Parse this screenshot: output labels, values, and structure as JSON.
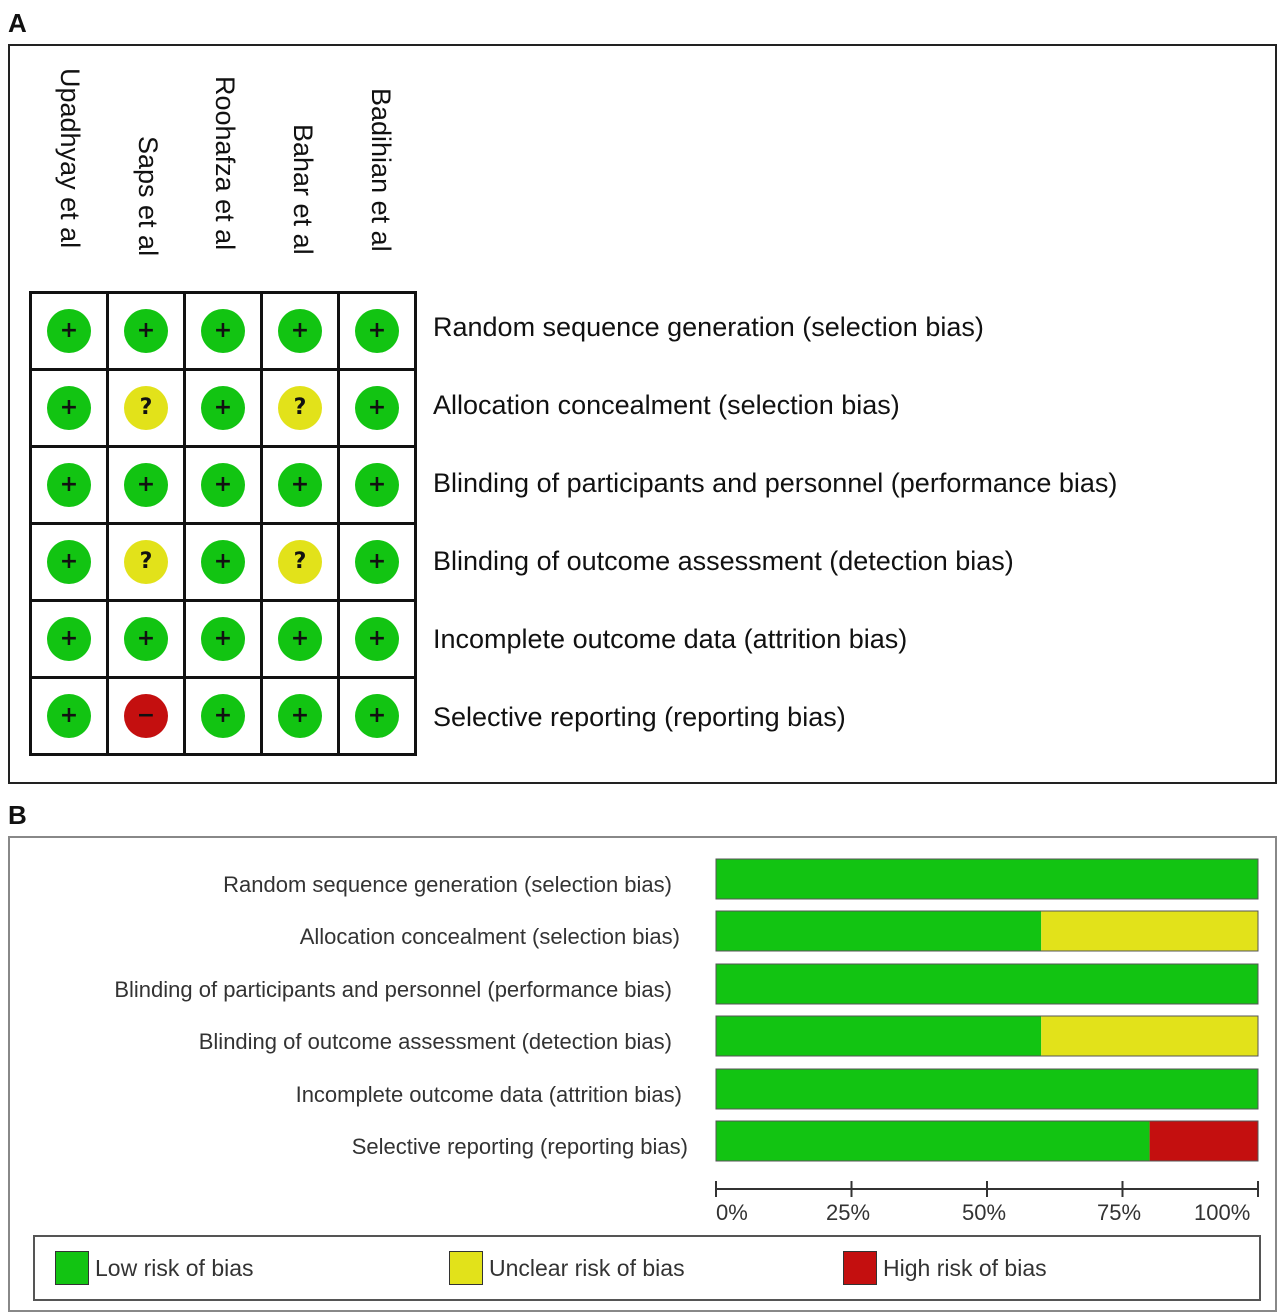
{
  "panel_a": {
    "letter": "A",
    "studies": [
      "Upadhyay et al",
      "Saps et al",
      "Roohafza et al",
      "Bahar et al",
      "Badihian et al"
    ],
    "domains": [
      "Random sequence generation (selection bias)",
      "Allocation concealment (selection bias)",
      "Blinding of participants and personnel (performance bias)",
      "Blinding of outcome assessment (detection bias)",
      "Incomplete outcome data (attrition bias)",
      "Selective reporting (reporting bias)"
    ],
    "symbols": {
      "low": "+",
      "unclear": "?",
      "high": "−"
    },
    "judgements": [
      [
        "low",
        "low",
        "low",
        "low",
        "low"
      ],
      [
        "low",
        "unclear",
        "low",
        "unclear",
        "low"
      ],
      [
        "low",
        "low",
        "low",
        "low",
        "low"
      ],
      [
        "low",
        "unclear",
        "low",
        "unclear",
        "low"
      ],
      [
        "low",
        "low",
        "low",
        "low",
        "low"
      ],
      [
        "low",
        "high",
        "low",
        "low",
        "low"
      ]
    ]
  },
  "panel_b": {
    "letter": "B",
    "legend": {
      "low": "Low risk of bias",
      "unclear": "Unclear risk of bias",
      "high": "High risk of bias"
    }
  },
  "colors": {
    "low": "#12c412",
    "unclear": "#e2e21a",
    "high": "#c40f0f"
  },
  "chart_data": {
    "type": "bar",
    "orientation": "horizontal",
    "stacked": true,
    "categories": [
      "Random sequence generation (selection bias)",
      "Allocation concealment (selection bias)",
      "Blinding of participants and personnel (performance bias)",
      "Blinding of outcome assessment (detection bias)",
      "Incomplete outcome data (attrition bias)",
      "Selective reporting (reporting bias)"
    ],
    "series": [
      {
        "name": "Low risk of bias",
        "values": [
          100,
          60,
          100,
          60,
          100,
          80
        ]
      },
      {
        "name": "Unclear risk of bias",
        "values": [
          0,
          40,
          0,
          40,
          0,
          0
        ]
      },
      {
        "name": "High risk of bias",
        "values": [
          0,
          0,
          0,
          0,
          0,
          20
        ]
      }
    ],
    "xlim": [
      0,
      100
    ],
    "xticks": [
      "0%",
      "25%",
      "50%",
      "75%",
      "100%"
    ],
    "legend": "bottom"
  }
}
